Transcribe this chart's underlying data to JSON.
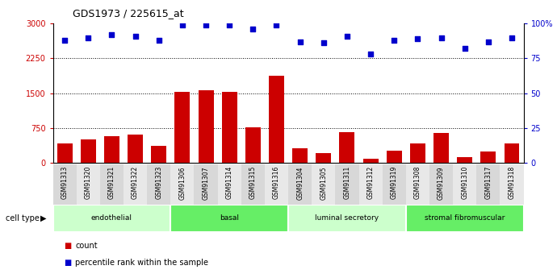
{
  "title": "GDS1973 / 225615_at",
  "samples": [
    "GSM91313",
    "GSM91320",
    "GSM91321",
    "GSM91322",
    "GSM91323",
    "GSM91306",
    "GSM91307",
    "GSM91314",
    "GSM91315",
    "GSM91316",
    "GSM91304",
    "GSM91305",
    "GSM91311",
    "GSM91312",
    "GSM91319",
    "GSM91308",
    "GSM91309",
    "GSM91310",
    "GSM91317",
    "GSM91318"
  ],
  "counts": [
    420,
    510,
    570,
    610,
    370,
    1530,
    1570,
    1530,
    760,
    1870,
    310,
    200,
    660,
    85,
    260,
    410,
    645,
    120,
    240,
    415
  ],
  "percentiles": [
    88,
    90,
    92,
    91,
    88,
    99,
    99,
    99,
    96,
    99,
    87,
    86,
    91,
    78,
    88,
    89,
    90,
    82,
    87,
    90
  ],
  "cell_types": [
    {
      "label": "endothelial",
      "start": 0,
      "end": 5,
      "color": "#ccffcc"
    },
    {
      "label": "basal",
      "start": 5,
      "end": 10,
      "color": "#66ee66"
    },
    {
      "label": "luminal secretory",
      "start": 10,
      "end": 15,
      "color": "#ccffcc"
    },
    {
      "label": "stromal fibromuscular",
      "start": 15,
      "end": 20,
      "color": "#66ee66"
    }
  ],
  "bar_color": "#cc0000",
  "dot_color": "#0000cc",
  "ylim_left": [
    0,
    3000
  ],
  "ylim_right": [
    0,
    100
  ],
  "yticks_left": [
    0,
    750,
    1500,
    2250,
    3000
  ],
  "yticks_right": [
    0,
    25,
    50,
    75,
    100
  ],
  "ytick_labels_left": [
    "0",
    "750",
    "1500",
    "2250",
    "3000"
  ],
  "ytick_labels_right": [
    "0",
    "25",
    "50",
    "75",
    "100%"
  ],
  "grid_lines": [
    750,
    1500,
    2250
  ],
  "legend_count_label": "count",
  "legend_pct_label": "percentile rank within the sample",
  "cell_type_label": "cell type",
  "bg_color": "#ffffff",
  "plot_bg": "#ffffff"
}
